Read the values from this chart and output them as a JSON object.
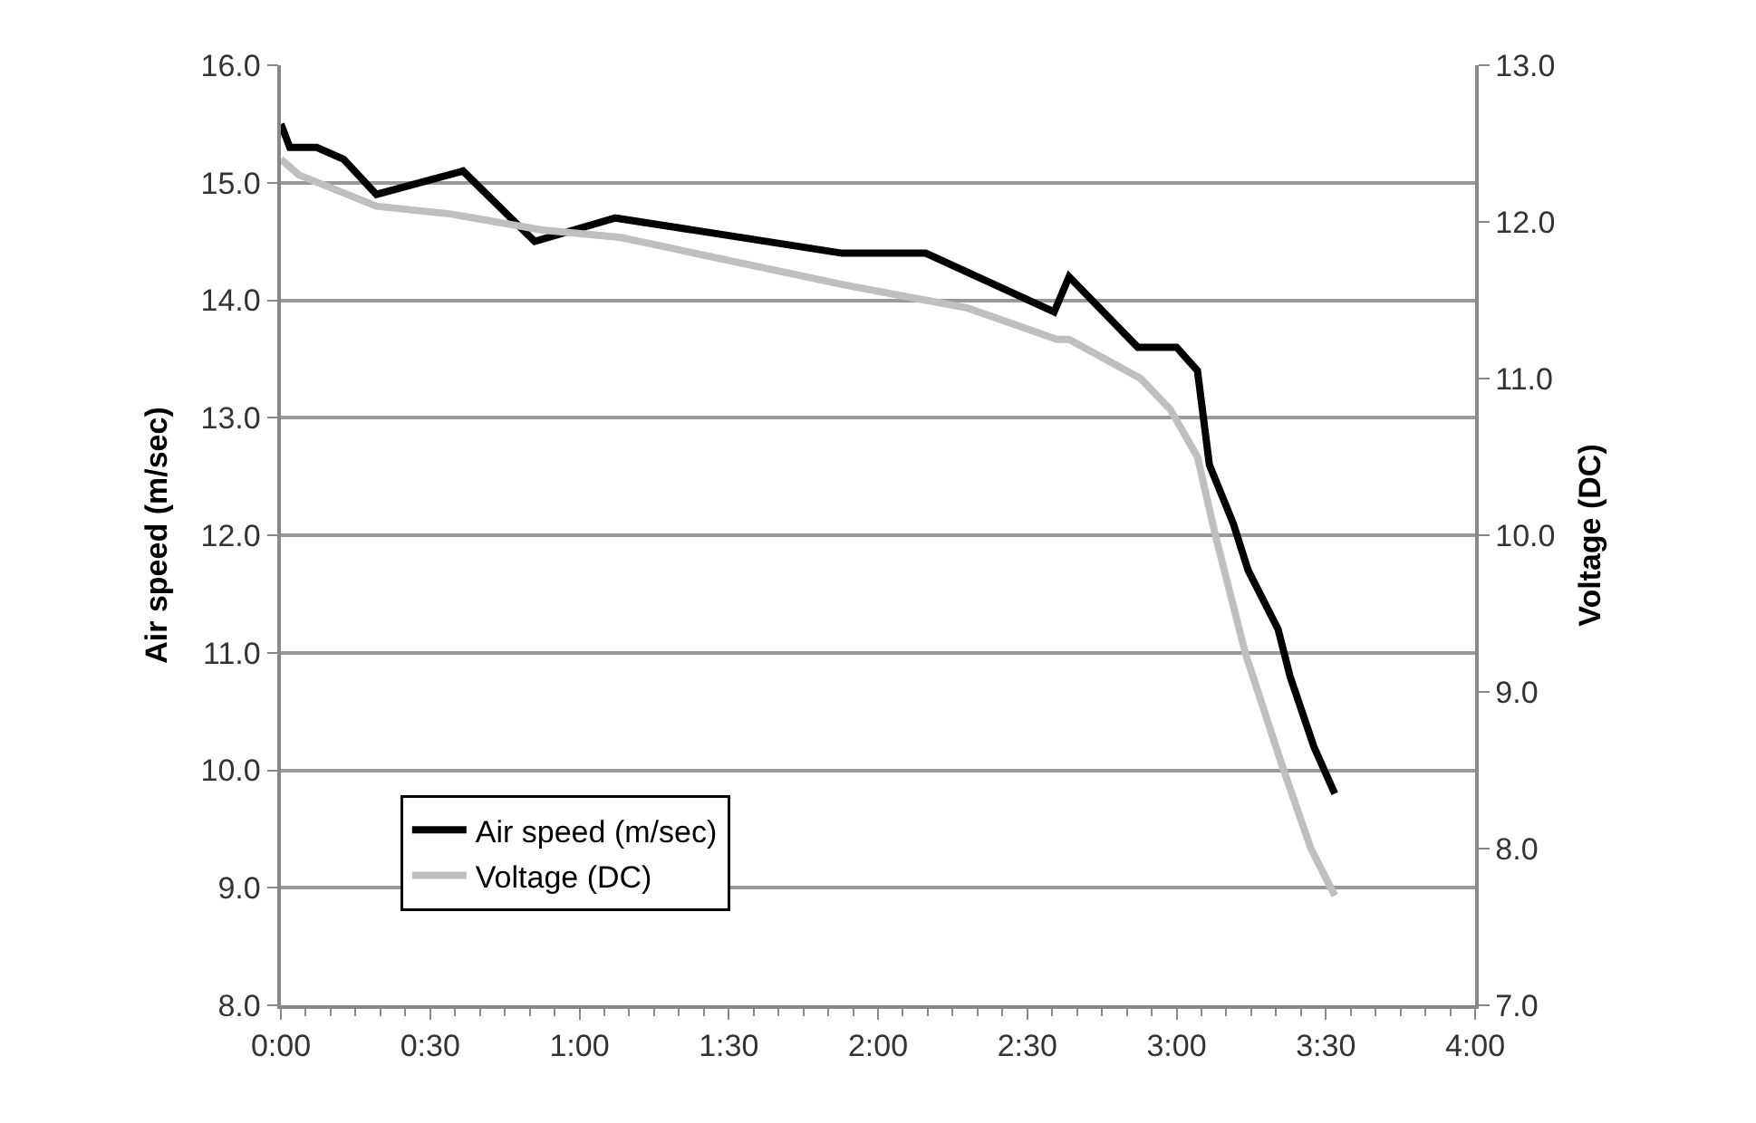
{
  "chart_data": {
    "type": "line",
    "xlabel": null,
    "ylabel": "Air speed (m/sec)",
    "y2label": "Voltage (DC)",
    "xlim": [
      0,
      4
    ],
    "xticks": [
      {
        "value": 0,
        "label": "0:00"
      },
      {
        "value": 0.5,
        "label": "0:30"
      },
      {
        "value": 1,
        "label": "1:00"
      },
      {
        "value": 1.5,
        "label": "1:30"
      },
      {
        "value": 2,
        "label": "2:00"
      },
      {
        "value": 2.5,
        "label": "2:30"
      },
      {
        "value": 3,
        "label": "3:00"
      },
      {
        "value": 3.5,
        "label": "3:30"
      },
      {
        "value": 4,
        "label": "4:00"
      }
    ],
    "ylim": [
      8,
      16
    ],
    "yticks": [
      {
        "value": 8,
        "label": "8.0"
      },
      {
        "value": 9,
        "label": "9.0"
      },
      {
        "value": 10,
        "label": "10.0"
      },
      {
        "value": 11,
        "label": "11.0"
      },
      {
        "value": 12,
        "label": "12.0"
      },
      {
        "value": 13,
        "label": "13.0"
      },
      {
        "value": 14,
        "label": "14.0"
      },
      {
        "value": 15,
        "label": "15.0"
      },
      {
        "value": 16,
        "label": "16.0"
      }
    ],
    "y2lim": [
      7,
      13
    ],
    "y2ticks": [
      {
        "value": 7,
        "label": "7.0"
      },
      {
        "value": 8,
        "label": "8.0"
      },
      {
        "value": 9,
        "label": "9.0"
      },
      {
        "value": 10,
        "label": "10.0"
      },
      {
        "value": 11,
        "label": "11.0"
      },
      {
        "value": 12,
        "label": "12.0"
      },
      {
        "value": 13,
        "label": "13.0"
      }
    ],
    "grid": "y",
    "legend": "bottom left",
    "series": [
      {
        "name": "Air speed (m/sec)",
        "color": "#000000",
        "x": [
          0,
          0.03,
          0.12,
          0.21,
          0.32,
          0.61,
          0.85,
          1.12,
          1.88,
          2.16,
          2.59,
          2.64,
          2.87,
          3.0,
          3.07,
          3.11,
          3.19,
          3.24,
          3.34,
          3.38,
          3.46,
          3.53
        ],
        "values": [
          15.5,
          15.3,
          15.3,
          15.2,
          14.9,
          15.1,
          14.5,
          14.7,
          14.4,
          14.4,
          13.9,
          14.2,
          13.6,
          13.6,
          13.4,
          12.6,
          12.1,
          11.7,
          11.2,
          10.8,
          10.2,
          9.8
        ]
      },
      {
        "name": "Voltage (DC)",
        "color": "#bfbfbf",
        "axis": "y2",
        "x": [
          0,
          0.06,
          0.32,
          0.57,
          0.87,
          1.14,
          1.88,
          2.3,
          2.6,
          2.64,
          2.88,
          2.98,
          3.07,
          3.13,
          3.23,
          3.35,
          3.45,
          3.53
        ],
        "values": [
          12.4,
          12.3,
          12.1,
          12.05,
          11.95,
          11.9,
          11.6,
          11.45,
          11.25,
          11.25,
          11.0,
          10.8,
          10.5,
          10.0,
          9.25,
          8.55,
          8.0,
          7.7
        ]
      }
    ]
  }
}
